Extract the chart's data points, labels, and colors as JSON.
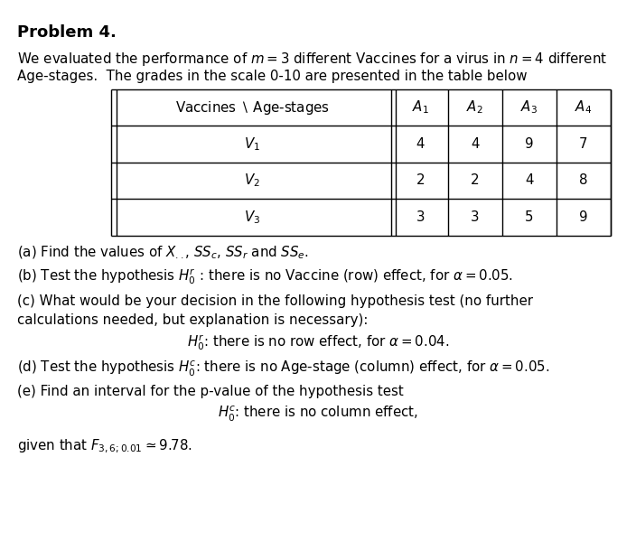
{
  "title": "Problem 4.",
  "intro_line1": "We evaluated the performance of $m = 3$ different Vaccines for a virus in $n = 4$ different",
  "intro_line2": "Age-stages.  The grades in the scale 0-10 are presented in the table below",
  "table_header_col0": "Vaccines $\\setminus$ Age-stages",
  "table_header_cols": [
    "$A_1$",
    "$A_2$",
    "$A_3$",
    "$A_4$"
  ],
  "table_rows": [
    [
      "$V_1$",
      "4",
      "4",
      "9",
      "7"
    ],
    [
      "$V_2$",
      "2",
      "2",
      "4",
      "8"
    ],
    [
      "$V_3$",
      "3",
      "3",
      "5",
      "9"
    ]
  ],
  "part_a": "(a) Find the values of $X_{..}$, $SS_c$, $SS_r$ and $SS_e$.",
  "part_b": "(b) Test the hypothesis $H_0^r$ : there is no Vaccine (row) effect, for $\\alpha = 0.05$.",
  "part_c1": "(c) What would be your decision in the following hypothesis test (no further",
  "part_c2": "calculations needed, but explanation is necessary):",
  "part_c3": "$H_0^r$: there is no row effect, for $\\alpha = 0.04$.",
  "part_d": "(d) Test the hypothesis $H_0^c$: there is no Age-stage (column) effect, for $\\alpha = 0.05$.",
  "part_e1": "(e) Find an interval for the p-value of the hypothesis test",
  "part_e2": "$H_0^c$: there is no column effect,",
  "part_e3": "given that $F_{3,6;0.01} \\simeq 9.78$.",
  "bg_color": "#ffffff",
  "text_color": "#000000",
  "font_size": 10.8,
  "title_font_size": 13.0
}
